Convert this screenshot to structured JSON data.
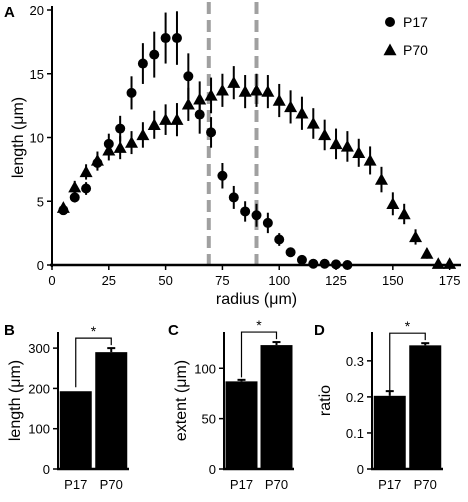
{
  "chart_data": [
    {
      "panel": "A",
      "type": "scatter",
      "xlabel": "radius (μm)",
      "ylabel": "length (μm)",
      "xlim": [
        0,
        180
      ],
      "ylim": [
        0,
        20
      ],
      "xticks": [
        0,
        25,
        50,
        75,
        100,
        125,
        150,
        175
      ],
      "yticks": [
        0,
        5,
        10,
        15,
        20
      ],
      "reference_lines_x": [
        69,
        90
      ],
      "legend_position": "top-right",
      "series": [
        {
          "name": "P17",
          "marker": "circle",
          "x": [
            5,
            10,
            15,
            20,
            25,
            30,
            35,
            40,
            45,
            50,
            55,
            60,
            65,
            70,
            75,
            80,
            85,
            90,
            95,
            100,
            105,
            110,
            115,
            120,
            125,
            130
          ],
          "y": [
            4.3,
            5.3,
            6.0,
            8.0,
            9.5,
            10.7,
            13.5,
            15.8,
            16.5,
            17.8,
            17.8,
            14.8,
            11.8,
            10.4,
            7.0,
            5.3,
            4.2,
            3.9,
            3.3,
            2.0,
            1.0,
            0.4,
            0.1,
            0.1,
            0.05,
            0.0
          ],
          "err": [
            0.3,
            0.4,
            0.5,
            0.6,
            0.8,
            1.0,
            1.3,
            1.6,
            1.8,
            2.0,
            2.1,
            1.8,
            1.5,
            1.2,
            1.0,
            0.9,
            0.8,
            0.9,
            0.8,
            0.5,
            0.3,
            0.2,
            0.1,
            0.1,
            0.05,
            0.0
          ]
        },
        {
          "name": "P70",
          "marker": "triangle",
          "x": [
            5,
            10,
            15,
            20,
            25,
            30,
            35,
            40,
            45,
            50,
            55,
            60,
            65,
            70,
            75,
            80,
            85,
            90,
            95,
            100,
            105,
            110,
            115,
            120,
            125,
            130,
            135,
            140,
            145,
            150,
            155,
            160,
            165,
            170,
            175
          ],
          "y": [
            4.5,
            6.1,
            7.3,
            8.2,
            9.0,
            9.2,
            9.6,
            10.2,
            11.0,
            11.4,
            11.4,
            12.6,
            13.0,
            13.3,
            13.7,
            14.3,
            13.6,
            13.7,
            13.6,
            12.9,
            12.4,
            11.9,
            11.1,
            10.2,
            9.5,
            9.3,
            8.8,
            8.2,
            6.7,
            4.8,
            4.0,
            2.2,
            0.9,
            0.1,
            0.1
          ],
          "err": [
            0.3,
            0.5,
            0.6,
            0.7,
            0.8,
            0.9,
            0.9,
            1.0,
            1.1,
            1.2,
            1.3,
            1.3,
            1.4,
            1.4,
            1.3,
            1.3,
            1.3,
            1.3,
            1.3,
            1.3,
            1.3,
            1.3,
            1.2,
            1.2,
            1.2,
            1.2,
            1.1,
            1.1,
            1.0,
            0.9,
            0.8,
            0.6,
            0.4,
            0.1,
            0.1
          ]
        }
      ]
    },
    {
      "panel": "B",
      "type": "bar",
      "ylabel": "length (μm)",
      "categories": [
        "P17",
        "P70"
      ],
      "values": [
        193,
        290
      ],
      "err": [
        0,
        10
      ],
      "ylim": [
        0,
        340
      ],
      "yticks": [
        0,
        100,
        200,
        300
      ],
      "significance": "*"
    },
    {
      "panel": "C",
      "type": "bar",
      "ylabel": "extent (μm)",
      "categories": [
        "P17",
        "P70"
      ],
      "values": [
        87,
        123
      ],
      "err": [
        1.5,
        3
      ],
      "ylim": [
        0,
        136
      ],
      "yticks": [
        0,
        50,
        100
      ],
      "significance": "*"
    },
    {
      "panel": "D",
      "type": "bar",
      "ylabel": "ratio",
      "categories": [
        "P17",
        "P70"
      ],
      "values": [
        0.203,
        0.343
      ],
      "err": [
        0.013,
        0.006
      ],
      "ylim": [
        0,
        0.38
      ],
      "yticks": [
        0,
        0.1,
        0.2,
        0.3
      ],
      "significance": "*"
    }
  ]
}
